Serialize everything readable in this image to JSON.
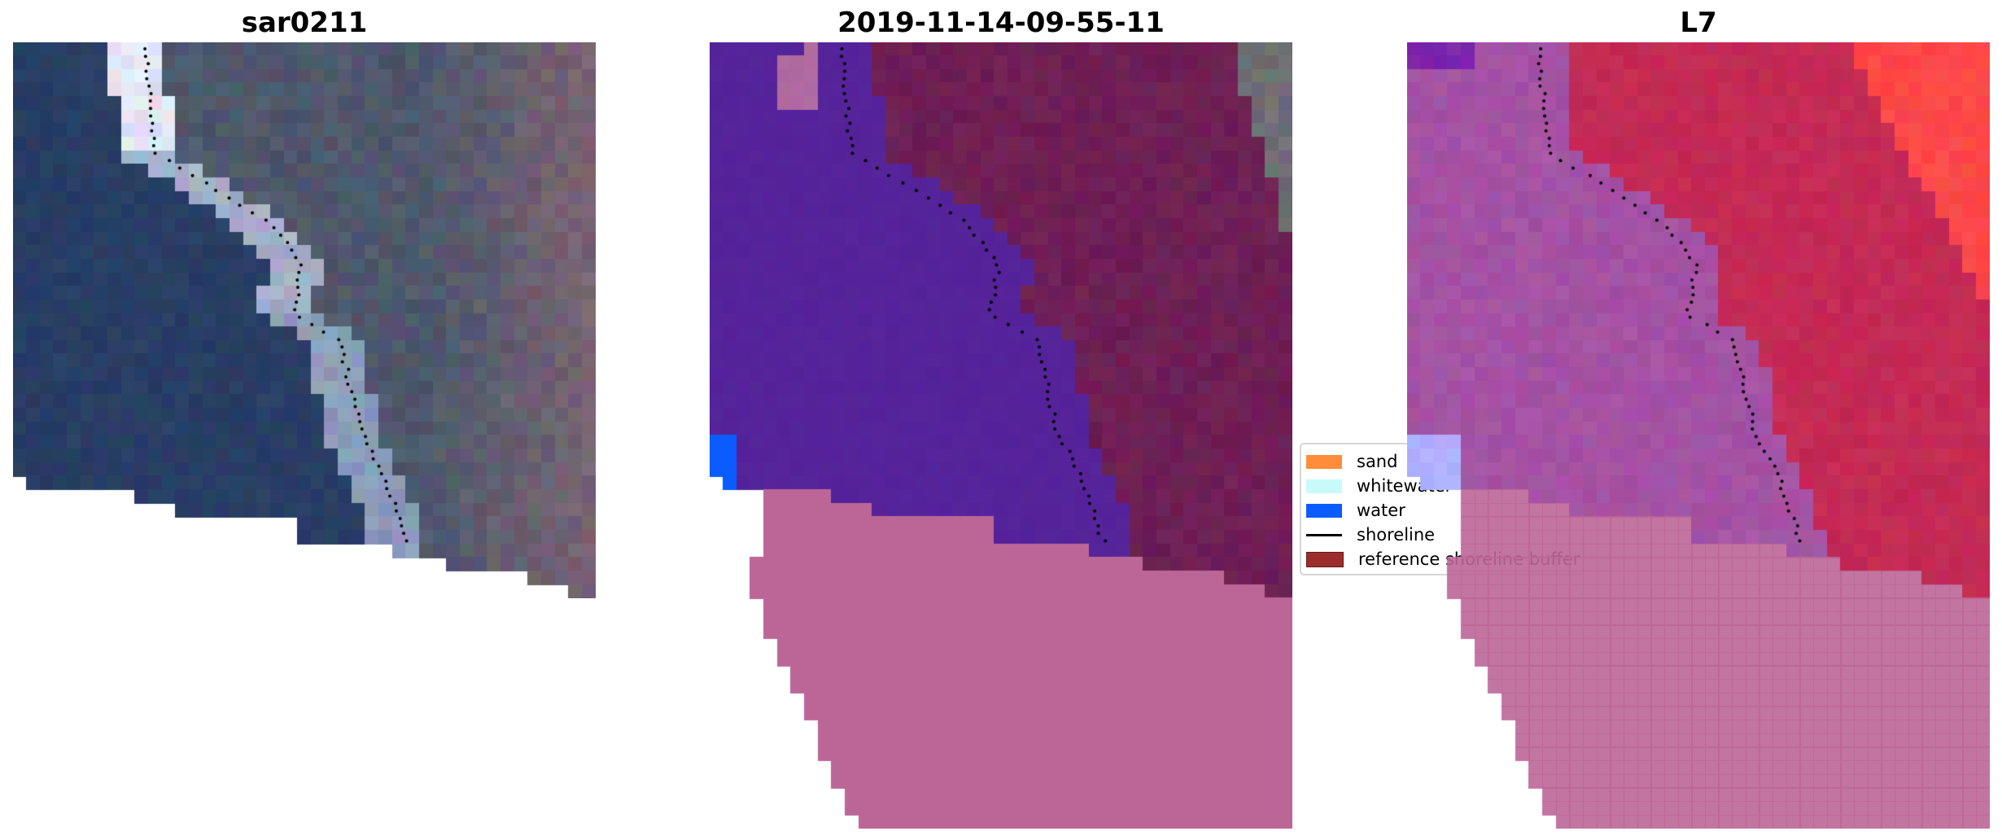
{
  "panels": [
    {
      "title": "sar0211"
    },
    {
      "title": "2019-11-14-09-55-11"
    },
    {
      "title": "L7"
    }
  ],
  "legend": {
    "items": [
      {
        "label": "sand",
        "color": "#ff8c3a",
        "kind": "patch"
      },
      {
        "label": "whitewater",
        "color": "#c8fafa",
        "kind": "patch"
      },
      {
        "label": "water",
        "color": "#0a5cff",
        "kind": "patch"
      },
      {
        "label": "shoreline",
        "color": "#000000",
        "kind": "line"
      },
      {
        "label": "reference shoreline buffer",
        "color": "#9b2d2d",
        "kind": "patch"
      }
    ]
  },
  "colors": {
    "water_class": "#55239a",
    "land_overlay": "#6e1f55",
    "nodata": "#bc6698",
    "l7_land": "#c42a55",
    "l7_water": "#a452a4"
  }
}
